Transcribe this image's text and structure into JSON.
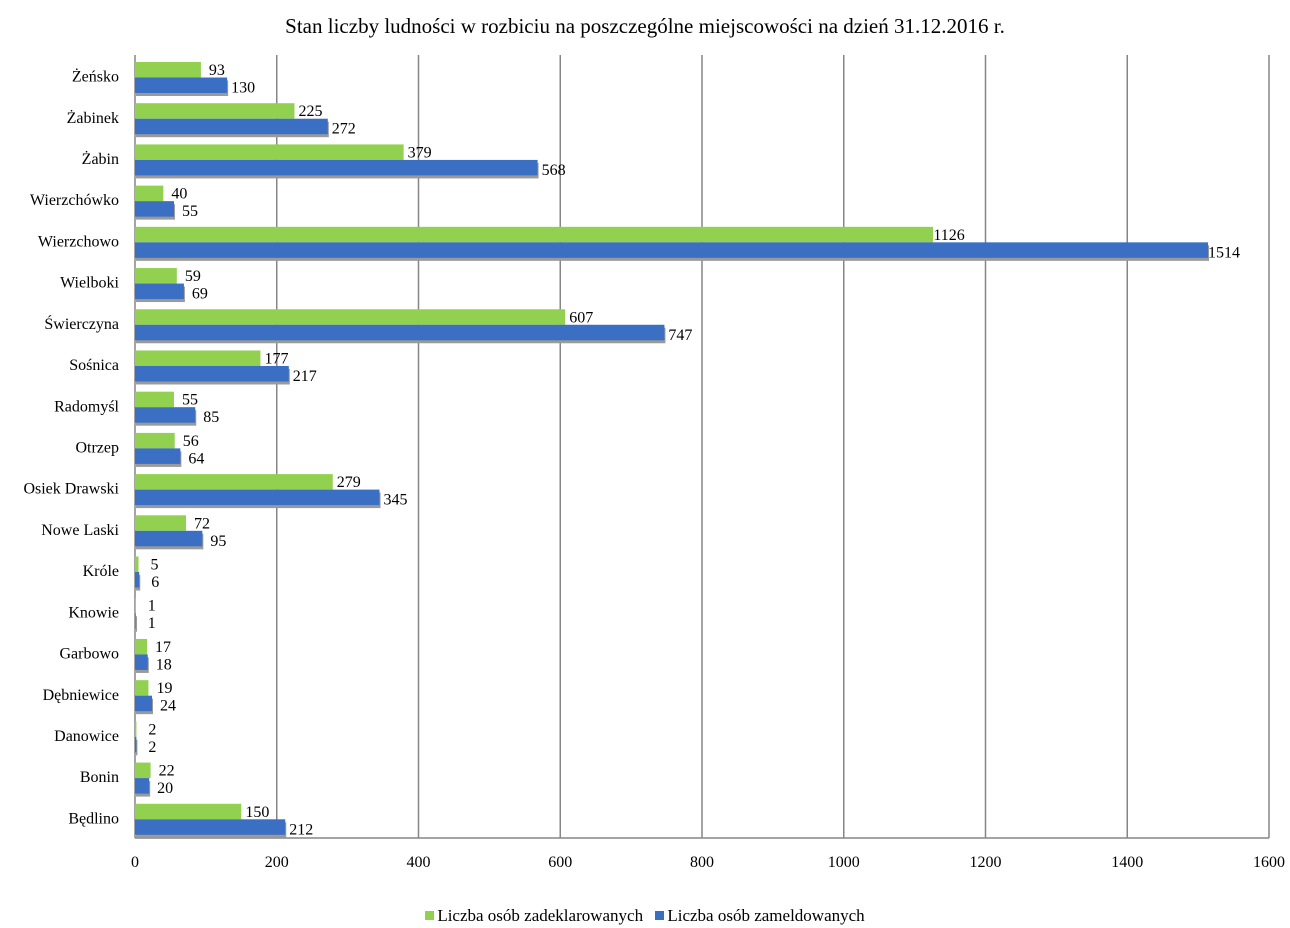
{
  "chart_data": {
    "type": "bar",
    "orientation": "horizontal",
    "title": "Stan liczby ludności w rozbiciu na poszczególne miejscowości na dzień 31.12.2016 r.",
    "categories": [
      "Żeńsko",
      "Żabinek",
      "Żabin",
      "Wierzchówko",
      "Wierzchowo",
      "Wielboki",
      "Świerczyna",
      "Sośnica",
      "Radomyśl",
      "Otrzep",
      "Osiek Drawski",
      "Nowe Laski",
      "Króle",
      "Knowie",
      "Garbowo",
      "Dębniewice",
      "Danowice",
      "Bonin",
      "Będlino"
    ],
    "series": [
      {
        "name": "Liczba osób zadeklarowanych",
        "color": "#92d050",
        "values": [
          93,
          225,
          379,
          40,
          1126,
          59,
          607,
          177,
          55,
          56,
          279,
          72,
          5,
          1,
          17,
          19,
          2,
          22,
          150
        ]
      },
      {
        "name": "Liczba osób zameldowanych",
        "color": "#3a6fc4",
        "values": [
          130,
          272,
          568,
          55,
          1514,
          69,
          747,
          217,
          85,
          64,
          345,
          95,
          6,
          1,
          18,
          24,
          2,
          20,
          212
        ]
      }
    ],
    "xlim": [
      0,
      1600
    ],
    "x_ticks": [
      "0",
      "200",
      "400",
      "600",
      "800",
      "1000",
      "1200",
      "1400",
      "1600"
    ],
    "grid": true,
    "data_labels": true,
    "legend_position": "bottom"
  }
}
